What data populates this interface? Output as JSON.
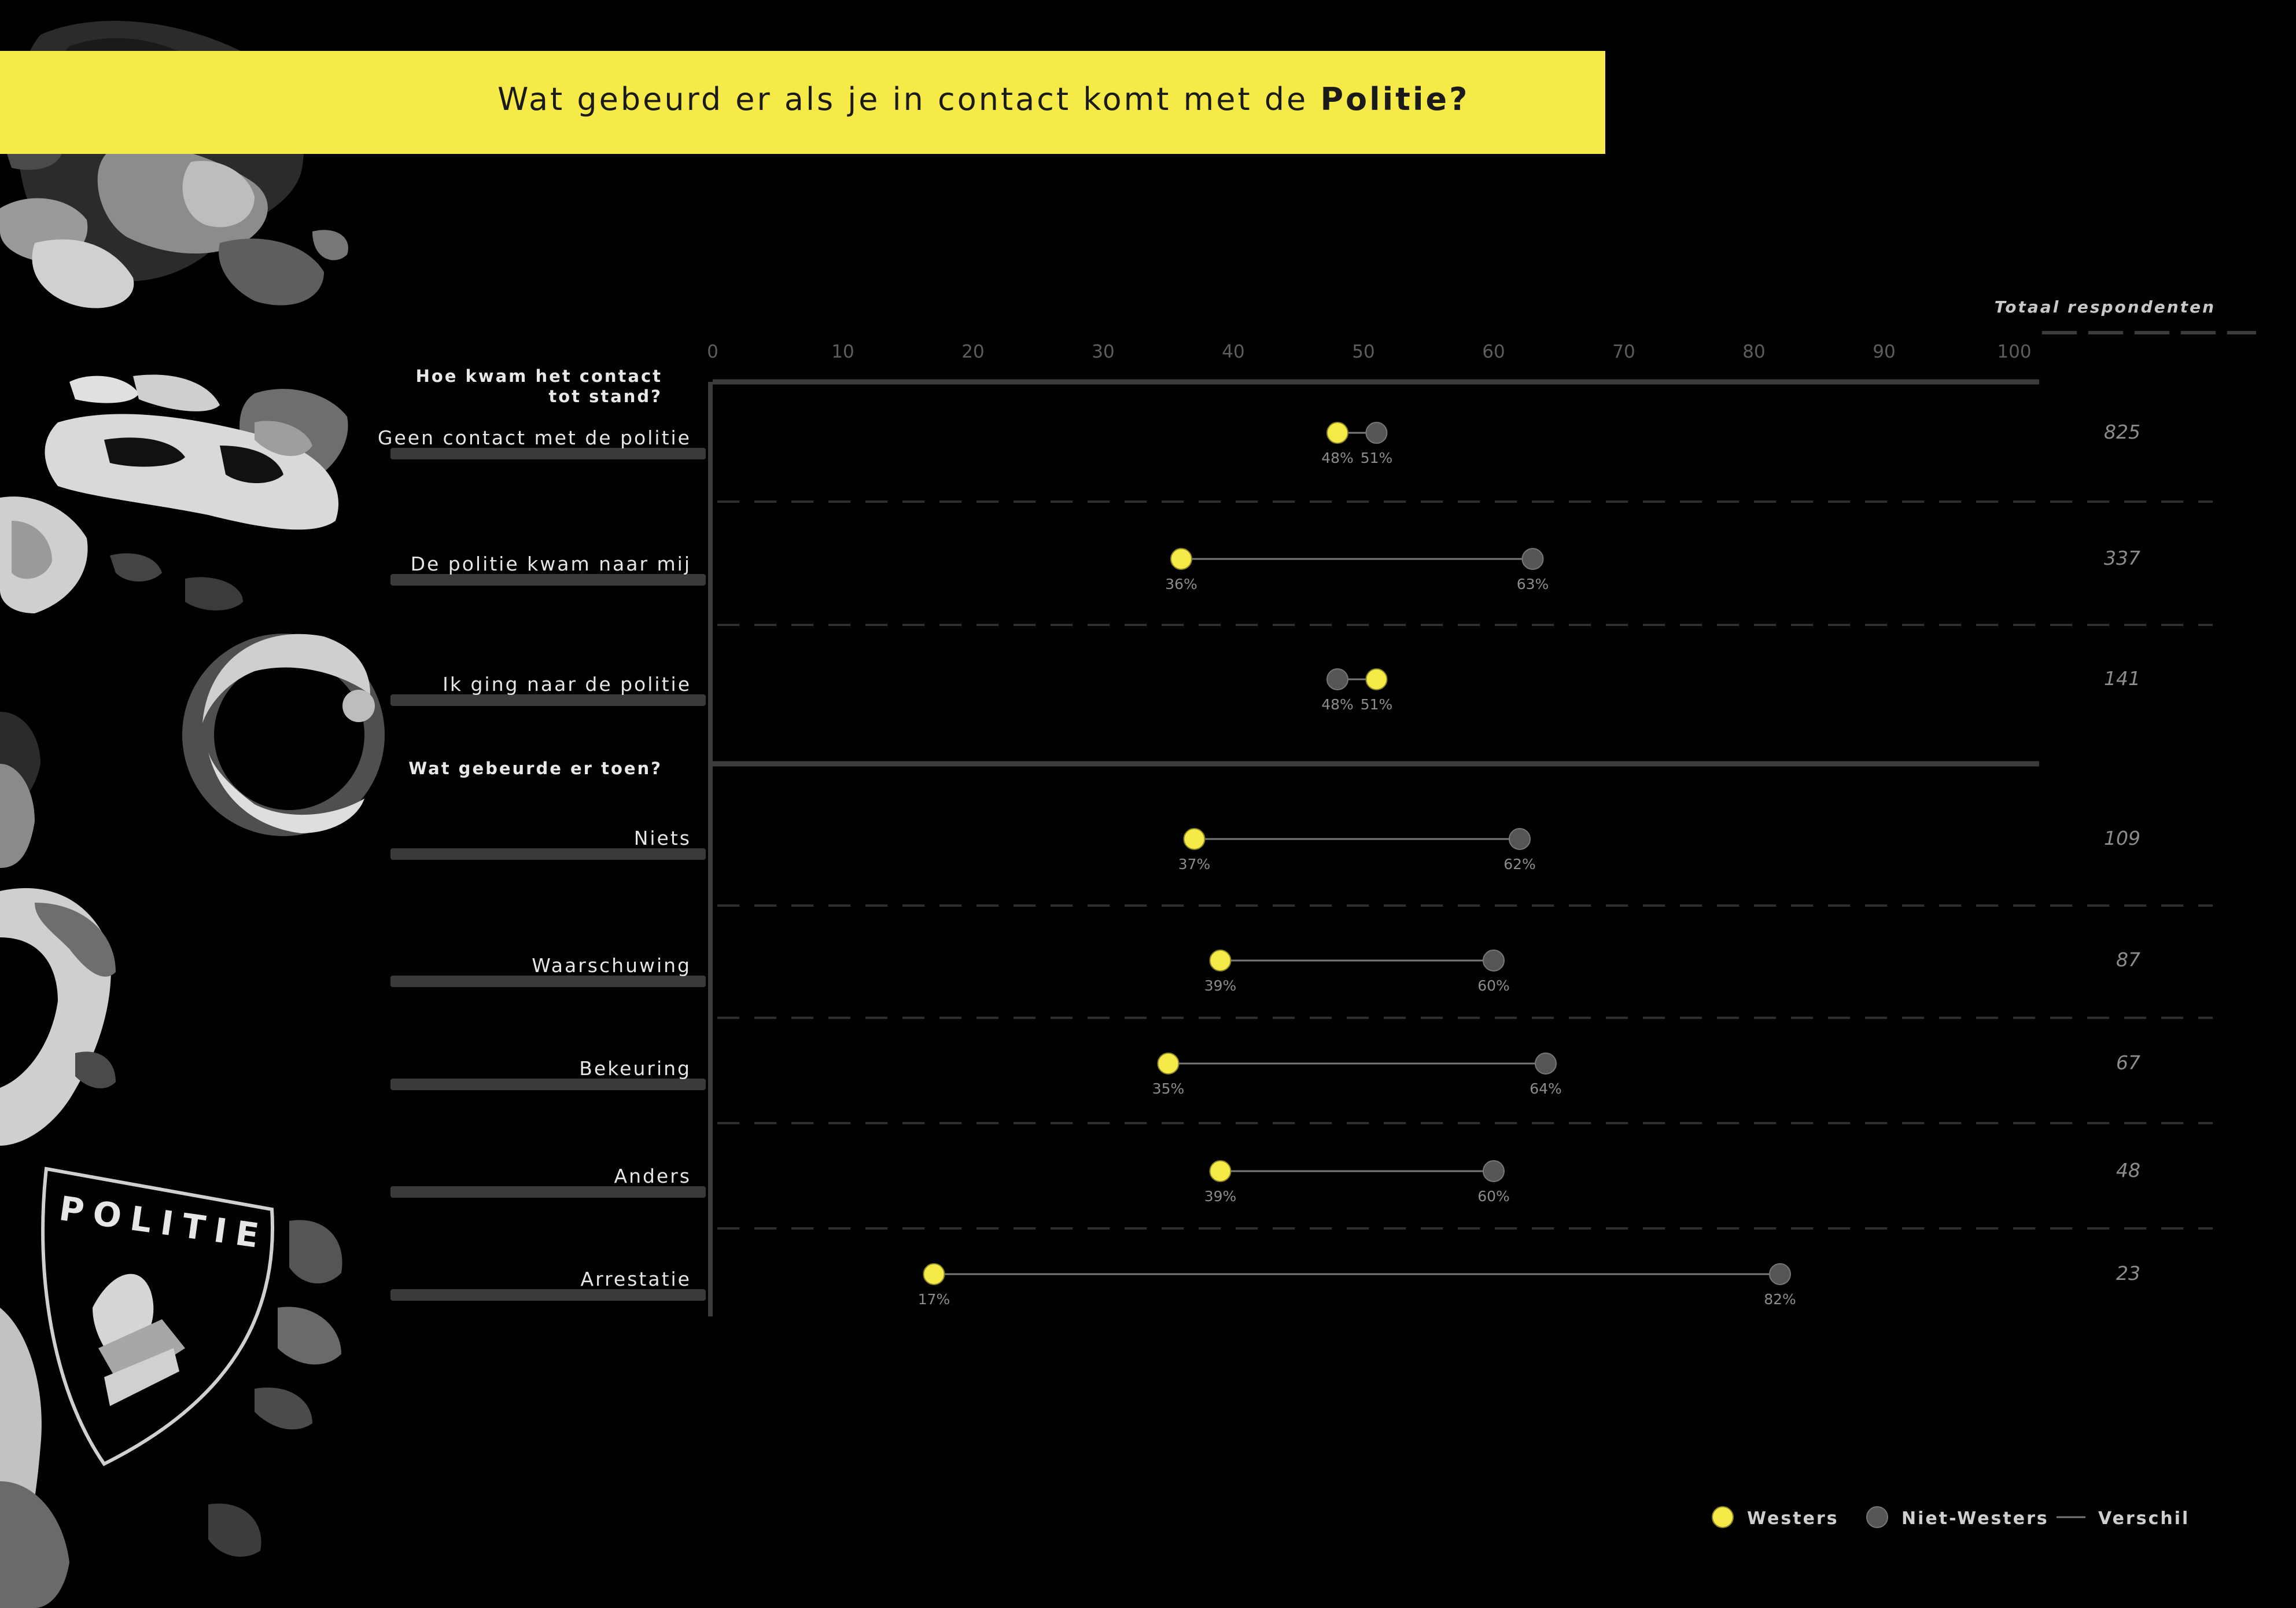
{
  "title": {
    "prefix": "Wat gebeurd er als je in contact komt met de ",
    "highlight": "Politie",
    "suffix": "?"
  },
  "badge_text": "POLITIE",
  "colors": {
    "background": "#000000",
    "title_bar": "#f5ea47",
    "westers": "#f5ea47",
    "niet_westers": "#555555",
    "verschil": "#7a7a7a"
  },
  "chart_data": {
    "type": "dumbbell",
    "xlim": [
      0,
      100
    ],
    "xticks": [
      0,
      10,
      20,
      30,
      40,
      50,
      60,
      70,
      80,
      90,
      100
    ],
    "total_label": "Totaal respondenten",
    "groups": [
      {
        "heading": "Hoe kwam het contact tot stand?",
        "heading_lines": [
          "Hoe kwam het contact",
          "tot stand?"
        ],
        "rows": [
          {
            "label": "Geen contact met de politie",
            "westers": 48,
            "niet_westers": 51,
            "westers_label": "48%",
            "niet_westers_label": "51%",
            "total": "825"
          },
          {
            "label": "De politie kwam naar mij",
            "westers": 36,
            "niet_westers": 63,
            "westers_label": "36%",
            "niet_westers_label": "63%",
            "total": "337"
          },
          {
            "label": "Ik ging naar de politie",
            "westers": 51,
            "niet_westers": 48,
            "westers_label": "51%",
            "niet_westers_label": "48%",
            "total": "141"
          }
        ]
      },
      {
        "heading": "Wat gebeurde er toen?",
        "heading_lines": [
          "Wat gebeurde er toen?"
        ],
        "rows": [
          {
            "label": "Niets",
            "westers": 37,
            "niet_westers": 62,
            "westers_label": "37%",
            "niet_westers_label": "62%",
            "total": "109"
          },
          {
            "label": "Waarschuwing",
            "westers": 39,
            "niet_westers": 60,
            "westers_label": "39%",
            "niet_westers_label": "60%",
            "total": "87"
          },
          {
            "label": "Bekeuring",
            "westers": 35,
            "niet_westers": 64,
            "westers_label": "35%",
            "niet_westers_label": "64%",
            "total": "67"
          },
          {
            "label": "Anders",
            "westers": 39,
            "niet_westers": 60,
            "westers_label": "39%",
            "niet_westers_label": "60%",
            "total": "48"
          },
          {
            "label": "Arrestatie",
            "westers": 17,
            "niet_westers": 82,
            "westers_label": "17%",
            "niet_westers_label": "82%",
            "total": "23"
          }
        ]
      }
    ],
    "legend": {
      "position": "bottom-right",
      "items": [
        {
          "key": "westers",
          "label": "Westers"
        },
        {
          "key": "niet_westers",
          "label": "Niet-Westers"
        },
        {
          "key": "verschil",
          "label": "Verschil"
        }
      ]
    }
  }
}
